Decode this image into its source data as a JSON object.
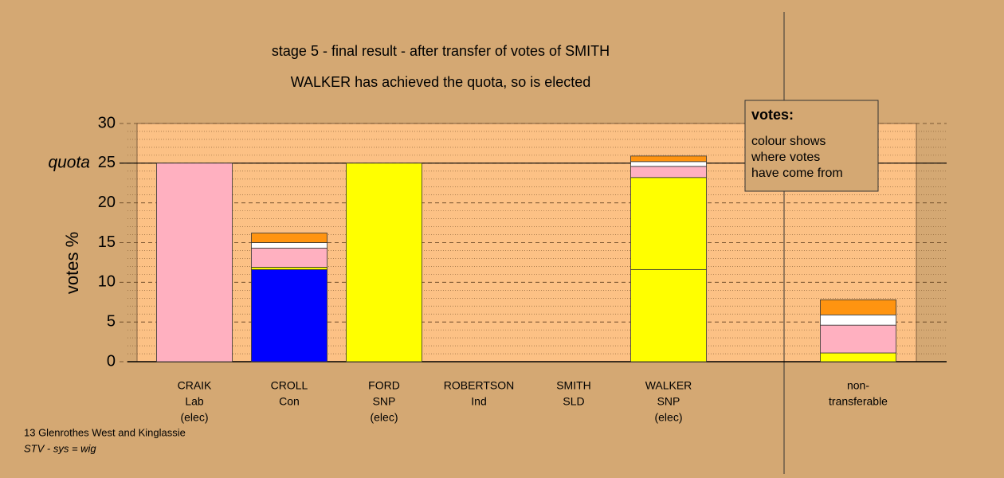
{
  "chart_data": {
    "type": "bar",
    "stacked": true,
    "title": "stage 5 - final result - after transfer of votes of SMITH",
    "subtitle": "WALKER has achieved the quota, so is elected",
    "y_label": "votes %",
    "quota": {
      "label": "quota",
      "value": 25
    },
    "categories": [
      [
        "CRAIK",
        "Lab",
        "(elec)"
      ],
      [
        "CROLL",
        "Con"
      ],
      [
        "FORD",
        "SNP",
        "(elec)"
      ],
      [
        "ROBERTSON",
        "Ind"
      ],
      [
        "SMITH",
        "SLD"
      ],
      [
        "WALKER",
        "SNP",
        "(elec)"
      ],
      null,
      [
        "non-",
        "transferable"
      ]
    ],
    "series": [
      {
        "color": "#0000ff",
        "values": [
          0,
          11.6,
          0,
          0,
          0,
          0,
          null,
          0
        ]
      },
      {
        "color": "#ffff00",
        "values": [
          0,
          0,
          0,
          0,
          0,
          11.6,
          null,
          1.1
        ]
      },
      {
        "color": "#ffff00",
        "values": [
          0,
          0.3,
          25,
          0,
          0,
          11.6,
          null,
          0
        ]
      },
      {
        "color": "#ffb0c0",
        "values": [
          25,
          2.4,
          0,
          0,
          0,
          1.4,
          null,
          3.5
        ]
      },
      {
        "color": "#ffffff",
        "values": [
          0,
          0.7,
          0,
          0,
          0,
          0.6,
          null,
          1.3
        ]
      },
      {
        "color": "#ff9410",
        "values": [
          0,
          1.2,
          0,
          0,
          0,
          0.7,
          null,
          1.9
        ]
      }
    ],
    "ylim": [
      0,
      30
    ],
    "yticks": [
      0,
      5,
      10,
      15,
      20,
      25,
      30
    ],
    "minor_yticks": [
      1,
      2,
      3,
      4,
      6,
      7,
      8,
      9,
      11,
      12,
      13,
      14,
      16,
      17,
      18,
      19,
      21,
      22,
      23,
      24,
      26,
      27,
      28,
      29
    ],
    "grid": true,
    "legend": {
      "title": "votes:",
      "lines": [
        "colour shows",
        "where votes",
        "have come from"
      ]
    },
    "footer": [
      "13 Glenrothes West and Kinglassie",
      "STV - sys = wig"
    ]
  }
}
